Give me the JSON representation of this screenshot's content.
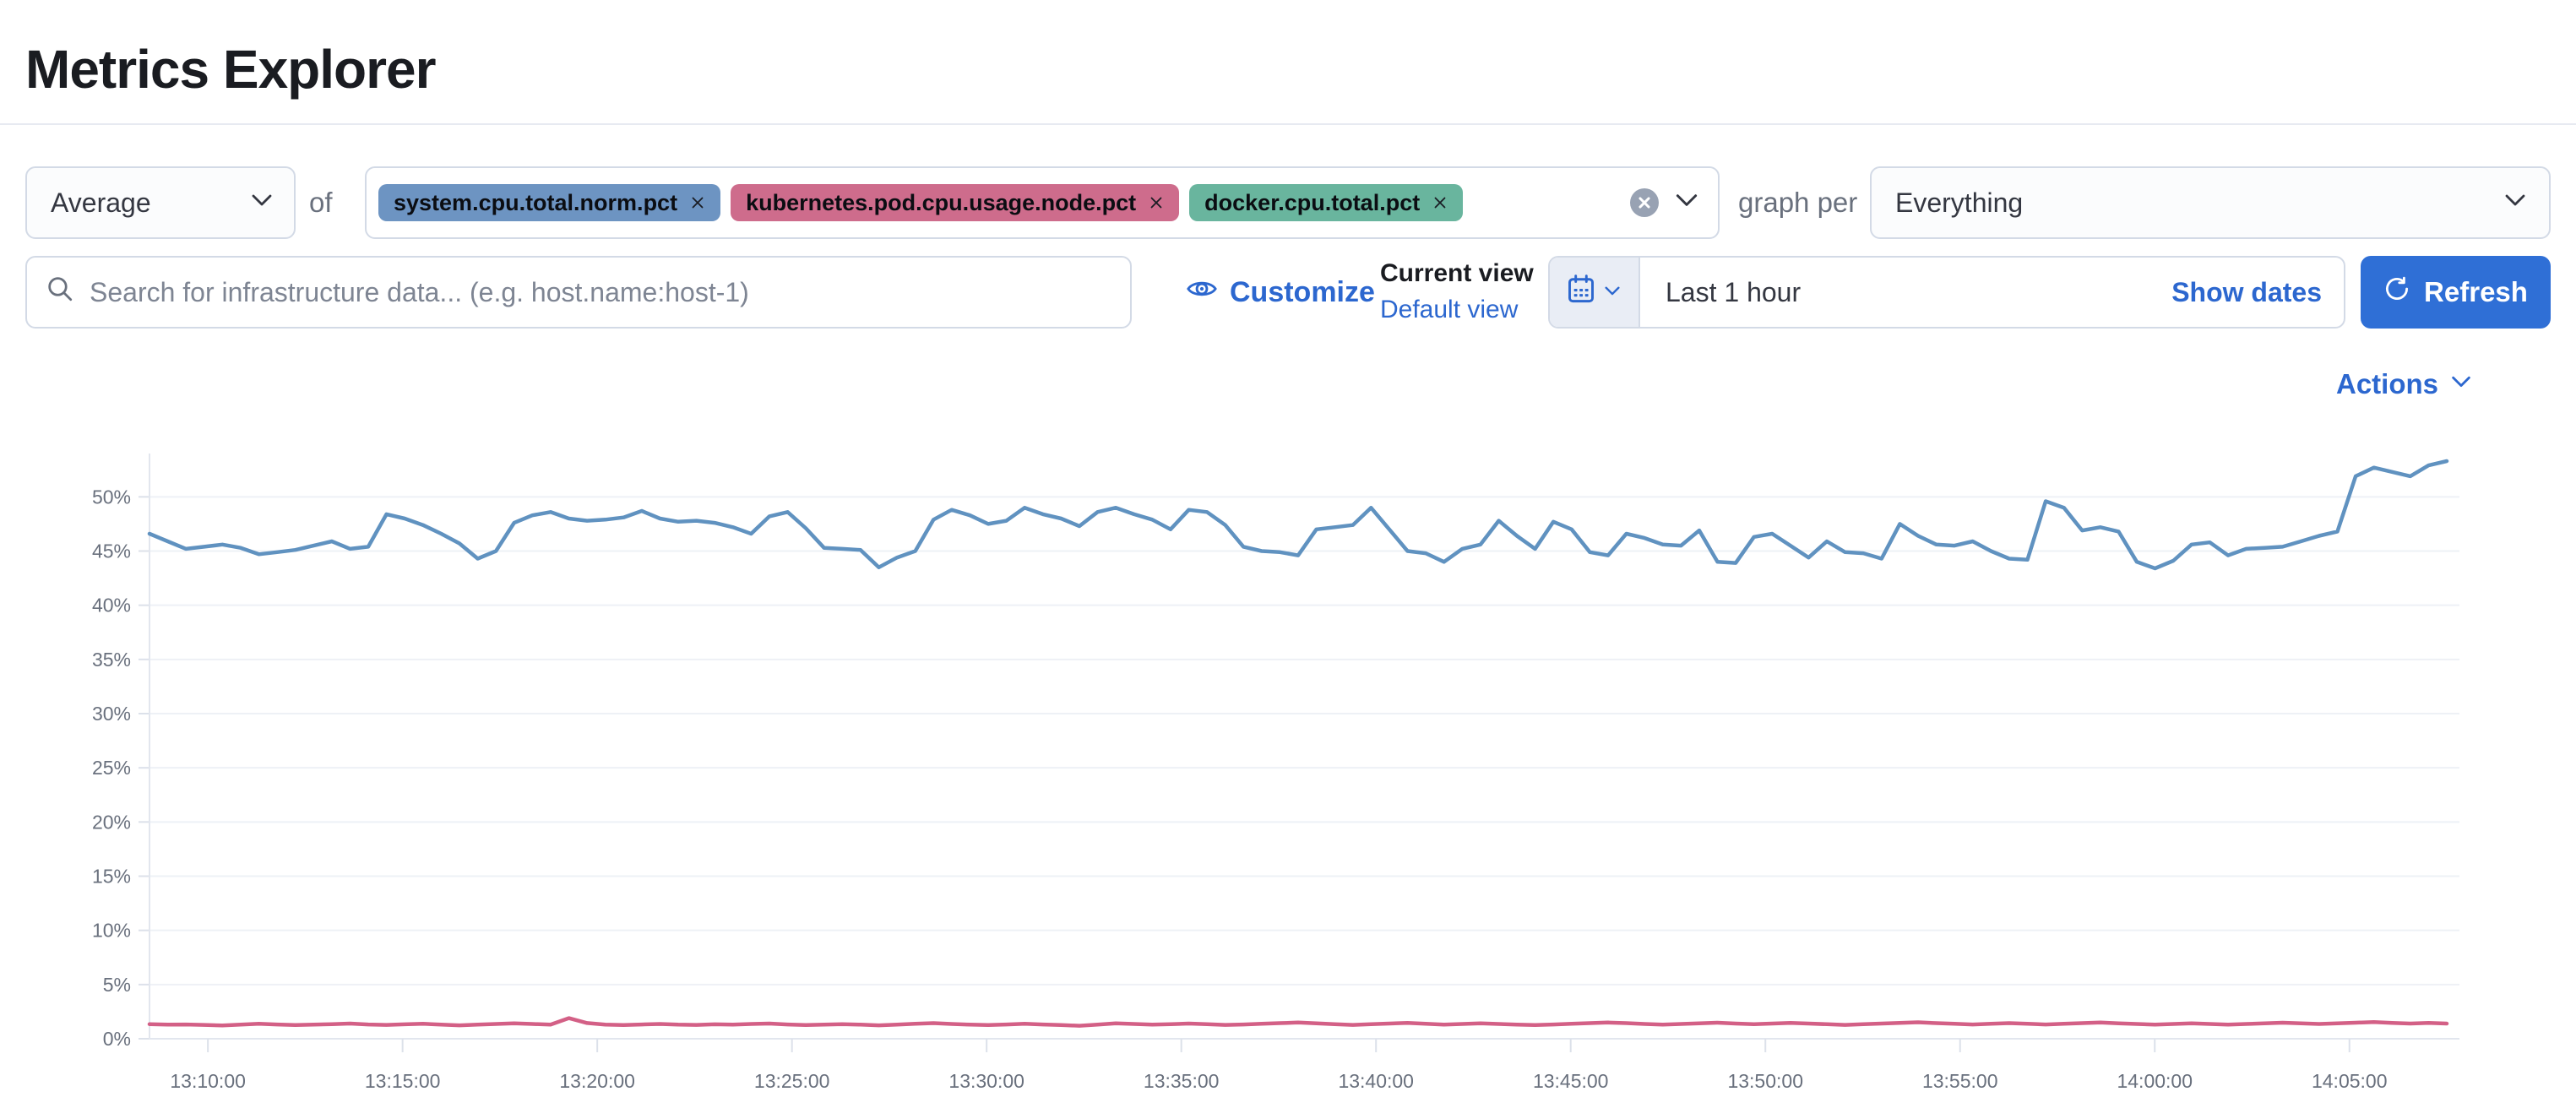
{
  "page_title": "Metrics Explorer",
  "toolbar": {
    "aggregation_value": "Average",
    "of_label": "of",
    "metrics": [
      {
        "label": "system.cpu.total.norm.pct",
        "color": "#6D94C2"
      },
      {
        "label": "kubernetes.pod.cpu.usage.node.pct",
        "color": "#CE6C8C"
      },
      {
        "label": "docker.cpu.total.pct",
        "color": "#69B59E"
      }
    ],
    "graph_per_label": "graph per",
    "group_by_value": "Everything"
  },
  "search": {
    "placeholder": "Search for infrastructure data... (e.g. host.name:host-1)"
  },
  "view_controls": {
    "customize_label": "Customize",
    "current_view_label": "Current view",
    "default_view_label": "Default view"
  },
  "datepicker": {
    "value": "Last 1 hour",
    "show_dates_label": "Show dates",
    "refresh_label": "Refresh"
  },
  "actions_label": "Actions",
  "colors": {
    "link": "#2C67CF",
    "button_primary": "#2F6FD6",
    "border": "#D3DAE6",
    "text_primary": "#343741",
    "text_subdued": "#69707D",
    "quick_select_bg": "#E9EDF5",
    "clear_button": "#98A2B3",
    "axis_text": "#69707D",
    "grid_line": "#EEF1F6",
    "axis_line": "#E2E6EE"
  },
  "chart_data": {
    "type": "line",
    "title": "",
    "xlabel": "",
    "ylabel": "",
    "grid": true,
    "legend": "none",
    "x_start": "13:08:30",
    "x_end": "14:07:30",
    "x_tick_labels": [
      "13:10:00",
      "13:15:00",
      "13:20:00",
      "13:25:00",
      "13:30:00",
      "13:35:00",
      "13:40:00",
      "13:45:00",
      "13:50:00",
      "13:55:00",
      "14:00:00",
      "14:05:00"
    ],
    "y_tick_step": 5,
    "y_tick_labels": [
      "0%",
      "5%",
      "10%",
      "15%",
      "20%",
      "25%",
      "30%",
      "35%",
      "40%",
      "45%",
      "50%"
    ],
    "ylim": [
      0,
      54
    ],
    "series": [
      {
        "name": "system.cpu.total.norm.pct (Average)",
        "color": "#6092C0",
        "values": [
          46.6,
          45.9,
          45.2,
          45.4,
          45.6,
          45.3,
          44.7,
          44.9,
          45.1,
          45.5,
          45.9,
          45.2,
          45.4,
          48.4,
          48.0,
          47.4,
          46.6,
          45.7,
          44.3,
          45.0,
          47.6,
          48.3,
          48.6,
          48.0,
          47.8,
          47.9,
          48.1,
          48.7,
          48.0,
          47.7,
          47.8,
          47.6,
          47.2,
          46.6,
          48.2,
          48.6,
          47.1,
          45.3,
          45.2,
          45.1,
          43.5,
          44.4,
          45.0,
          47.9,
          48.8,
          48.3,
          47.5,
          47.8,
          49.0,
          48.4,
          48.0,
          47.3,
          48.6,
          49.0,
          48.4,
          47.9,
          47.0,
          48.8,
          48.6,
          47.4,
          45.4,
          45.0,
          44.9,
          44.6,
          47.0,
          47.2,
          47.4,
          49.0,
          47.0,
          45.0,
          44.8,
          44.0,
          45.2,
          45.6,
          47.8,
          46.4,
          45.2,
          47.7,
          47.0,
          44.9,
          44.6,
          46.6,
          46.2,
          45.6,
          45.5,
          46.9,
          44.0,
          43.9,
          46.3,
          46.6,
          45.5,
          44.4,
          45.9,
          44.9,
          44.8,
          44.3,
          47.5,
          46.4,
          45.6,
          45.5,
          45.9,
          45.0,
          44.3,
          44.2,
          49.6,
          49.0,
          46.9,
          47.2,
          46.8,
          44.0,
          43.4,
          44.1,
          45.6,
          45.8,
          44.6,
          45.2,
          45.3,
          45.4,
          45.9,
          46.4,
          46.8,
          51.9,
          52.7,
          52.3,
          51.9,
          52.9,
          53.3
        ]
      },
      {
        "name": "kubernetes.pod.cpu.usage.node.pct (Average)",
        "color": "#D36086",
        "values": [
          1.35,
          1.3,
          1.32,
          1.28,
          1.22,
          1.3,
          1.38,
          1.32,
          1.26,
          1.3,
          1.35,
          1.4,
          1.32,
          1.28,
          1.33,
          1.38,
          1.3,
          1.24,
          1.3,
          1.36,
          1.42,
          1.36,
          1.3,
          1.9,
          1.45,
          1.3,
          1.26,
          1.32,
          1.36,
          1.3,
          1.28,
          1.33,
          1.3,
          1.36,
          1.4,
          1.32,
          1.26,
          1.3,
          1.34,
          1.3,
          1.24,
          1.3,
          1.38,
          1.44,
          1.36,
          1.3,
          1.26,
          1.32,
          1.38,
          1.32,
          1.26,
          1.2,
          1.3,
          1.42,
          1.36,
          1.3,
          1.34,
          1.4,
          1.34,
          1.28,
          1.32,
          1.38,
          1.44,
          1.5,
          1.42,
          1.34,
          1.28,
          1.34,
          1.4,
          1.46,
          1.38,
          1.3,
          1.36,
          1.42,
          1.36,
          1.3,
          1.26,
          1.32,
          1.38,
          1.44,
          1.5,
          1.44,
          1.36,
          1.3,
          1.36,
          1.42,
          1.48,
          1.4,
          1.34,
          1.4,
          1.46,
          1.4,
          1.34,
          1.28,
          1.34,
          1.4,
          1.46,
          1.52,
          1.44,
          1.38,
          1.32,
          1.38,
          1.44,
          1.38,
          1.32,
          1.38,
          1.44,
          1.5,
          1.42,
          1.36,
          1.3,
          1.36,
          1.42,
          1.36,
          1.3,
          1.36,
          1.42,
          1.48,
          1.42,
          1.36,
          1.42,
          1.48,
          1.54,
          1.46,
          1.4,
          1.46,
          1.4
        ]
      }
    ]
  }
}
